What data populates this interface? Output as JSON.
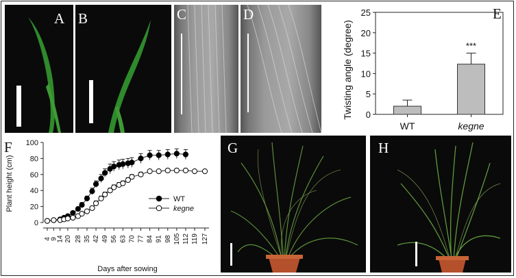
{
  "panels": {
    "A": "A",
    "B": "B",
    "C": "C",
    "D": "D",
    "E": "E",
    "F": "F",
    "G": "G",
    "H": "H"
  },
  "bar_chart": {
    "ylabel": "Twisting angle (degree)",
    "categories": [
      "WT",
      "kegne"
    ],
    "values": [
      2,
      12.3
    ],
    "errors": [
      1.5,
      2.7
    ],
    "ylim": [
      0,
      25
    ],
    "yticks": [
      "0",
      "5",
      "10",
      "15",
      "20",
      "25"
    ],
    "significance": "***",
    "colors": {
      "bar": "#bdbdbd",
      "edge": "#333333"
    }
  },
  "chart_data": {
    "type": "line",
    "xlabel": "Days after sowing",
    "ylabel": "Plant height (cm)",
    "ylim": [
      0,
      100
    ],
    "yticks": [
      "0",
      "20",
      "40",
      "60",
      "80",
      "100"
    ],
    "xticks": [
      "4",
      "9",
      "14",
      "20",
      "28",
      "35",
      "42",
      "49",
      "56",
      "63",
      "70",
      "77",
      "84",
      "91",
      "98",
      "105",
      "112",
      "119",
      "127"
    ],
    "legend_position": "bottom-right",
    "series": [
      {
        "name": "WT",
        "marker": "filled-circle",
        "x": [
          4,
          9,
          14,
          17,
          20,
          24,
          28,
          31,
          35,
          39,
          42,
          46,
          49,
          53,
          56,
          60,
          63,
          67,
          70,
          77,
          84,
          91,
          98,
          105,
          112
        ],
        "y": [
          2,
          3,
          4,
          6,
          8,
          12,
          17,
          22,
          30,
          39,
          48,
          55,
          62,
          67,
          70,
          72,
          73,
          74,
          75,
          80,
          84,
          84,
          85,
          86,
          85
        ],
        "err": [
          0,
          0,
          0,
          0,
          1,
          2,
          2,
          3,
          3,
          4,
          4,
          5,
          5,
          6,
          6,
          6,
          6,
          6,
          6,
          6,
          6,
          6,
          6,
          6,
          6
        ]
      },
      {
        "name": "kegne",
        "marker": "open-circle",
        "x": [
          4,
          9,
          14,
          17,
          20,
          24,
          28,
          31,
          35,
          39,
          42,
          46,
          49,
          53,
          56,
          60,
          63,
          67,
          70,
          77,
          84,
          91,
          98,
          105,
          112,
          119,
          127
        ],
        "y": [
          2,
          3,
          3,
          4,
          5,
          6,
          8,
          11,
          14,
          18,
          24,
          30,
          35,
          40,
          44,
          47,
          49,
          53,
          57,
          60,
          64,
          64,
          65,
          65,
          65,
          64,
          64
        ],
        "err": [
          0,
          0,
          0,
          0,
          1,
          1,
          1,
          2,
          2,
          2,
          3,
          3,
          3,
          3,
          3,
          3,
          3,
          3,
          3,
          3,
          2,
          2,
          2,
          2,
          2,
          2,
          2
        ]
      }
    ]
  }
}
